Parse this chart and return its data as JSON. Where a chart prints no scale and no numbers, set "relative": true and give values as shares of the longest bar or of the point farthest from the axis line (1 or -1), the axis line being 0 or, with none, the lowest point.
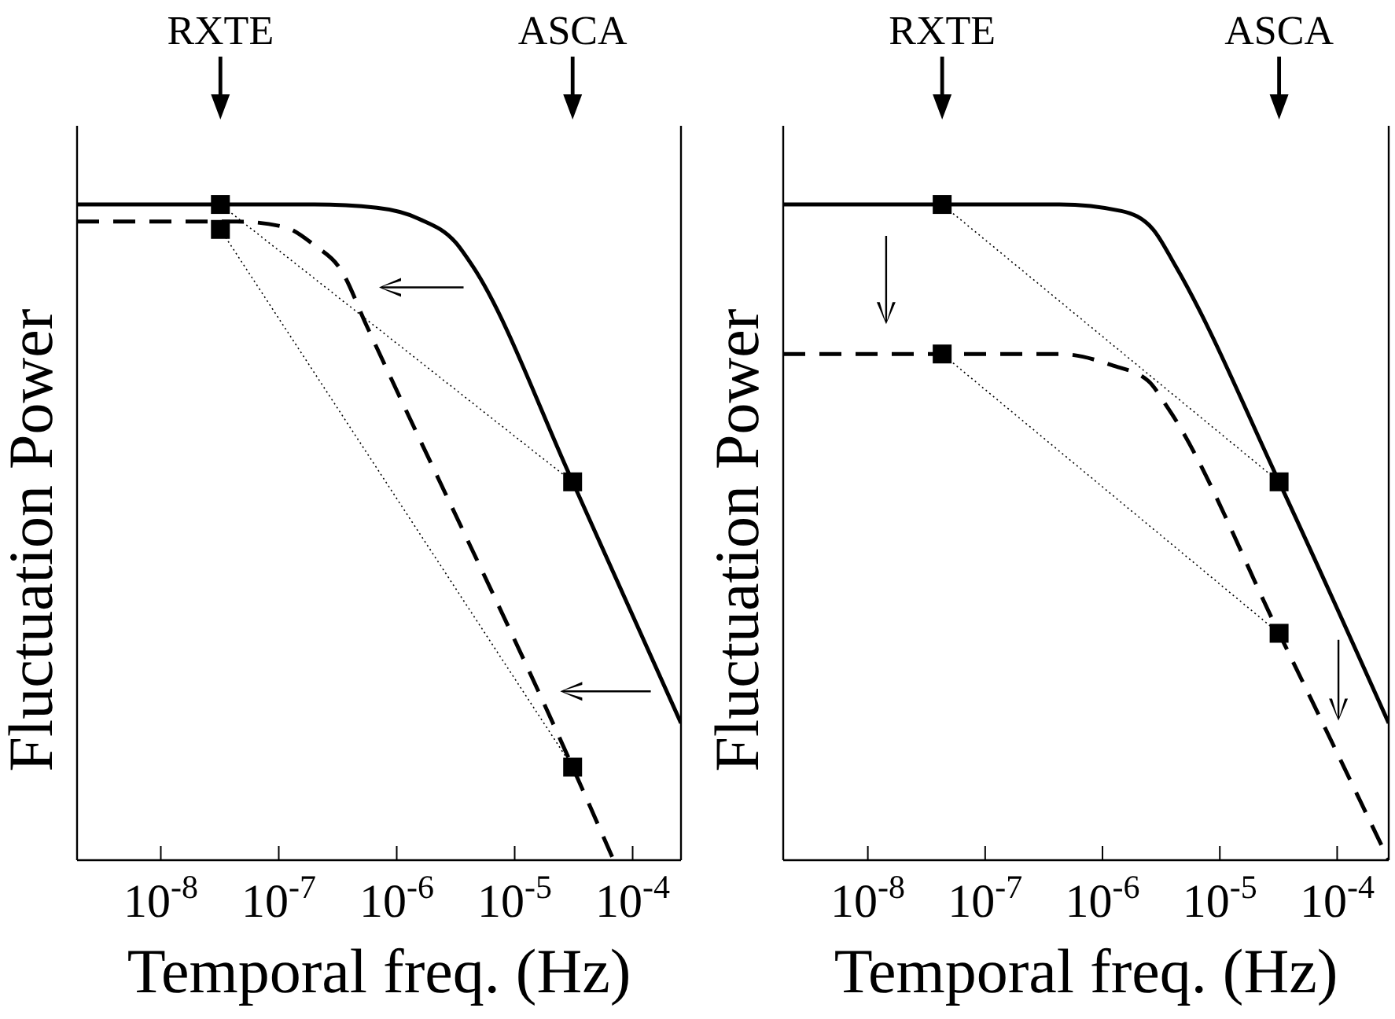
{
  "chart_data": [
    {
      "type": "line",
      "relative": true,
      "xlabel": "Temporal freq. (Hz)",
      "ylabel": "Fluctuation Power",
      "log": "x",
      "xlim": [
        1.95e-09,
        0.000257
      ],
      "xticks": [
        {
          "value": 1e-08,
          "label": "10$^{-8}$"
        },
        {
          "value": 1e-07,
          "label": "10$^{-7}$"
        },
        {
          "value": 1e-06,
          "label": "10$^{-6}$"
        },
        {
          "value": 1e-05,
          "label": "10$^{-5}$"
        },
        {
          "value": 0.0001,
          "label": "10$^{-4}$"
        }
      ],
      "annotations": [
        "RXTE",
        "ASCA"
      ],
      "series": [
        {
          "type": "line",
          "color": "#000000",
          "line_style": "solid",
          "marker": "none",
          "x": [
            1.95e-09,
            2e-07,
            6.8e-07,
            1.55e-06,
            3.16e-06,
            4.4e-06,
            3.1e-05,
            0.000257
          ],
          "values": [
            1.0,
            1.0,
            0.995,
            0.978,
            0.942,
            0.906,
            0.577,
            0.209
          ]
        },
        {
          "type": "line",
          "color": "#000000",
          "line_style": "dashed",
          "marker": "none",
          "x": [
            1.95e-09,
            4.4e-08,
            1.1e-07,
            2e-07,
            3.4e-07,
            5.5e-07,
            3.1e-05,
            6.9e-05
          ],
          "values": [
            0.974,
            0.974,
            0.966,
            0.938,
            0.899,
            0.817,
            0.142,
            0
          ]
        },
        {
          "type": "line",
          "color": "#000000",
          "line_style": "dotted",
          "marker": "square",
          "x": [
            3.2e-08,
            3.1e-05
          ],
          "values": [
            1.0,
            0.577
          ]
        },
        {
          "type": "line",
          "color": "#000000",
          "line_style": "dotted",
          "marker": "square",
          "x": [
            3.2e-08,
            3.1e-05
          ],
          "values": [
            0.962,
            0.142
          ]
        }
      ]
    },
    {
      "type": "line",
      "relative": true,
      "xlabel": "Temporal freq. (Hz)",
      "ylabel": "Fluctuation Power",
      "log": "x",
      "xlim": [
        1.9e-09,
        0.000275
      ],
      "xticks": [
        {
          "value": 1e-08,
          "label": "10$^{-8}$"
        },
        {
          "value": 1e-07,
          "label": "10$^{-7}$"
        },
        {
          "value": 1e-06,
          "label": "10$^{-6}$"
        },
        {
          "value": 1e-05,
          "label": "10$^{-5}$"
        },
        {
          "value": 0.0001,
          "label": "10$^{-4}$"
        }
      ],
      "annotations": [
        "RXTE",
        "ASCA"
      ],
      "series": [
        {
          "type": "line",
          "color": "#000000",
          "line_style": "solid",
          "marker": "none",
          "x": [
            1.9e-09,
            4.3e-07,
            1.45e-06,
            2.7e-06,
            4.2e-06,
            3.2e-05,
            0.000275
          ],
          "values": [
            1.0,
            1.0,
            0.99,
            0.962,
            0.906,
            0.577,
            0.209
          ]
        },
        {
          "type": "line",
          "color": "#000000",
          "line_style": "dashed",
          "marker": "none",
          "x": [
            1.9e-09,
            4.3e-07,
            1.2e-06,
            2.45e-06,
            3.6e-06,
            3.2e-05,
            0.000275
          ],
          "values": [
            0.772,
            0.772,
            0.755,
            0.731,
            0.69,
            0.346,
            0
          ]
        },
        {
          "type": "line",
          "color": "#000000",
          "line_style": "dotted",
          "marker": "square",
          "x": [
            4.3e-08,
            3.2e-05
          ],
          "values": [
            1.0,
            0.577
          ]
        },
        {
          "type": "line",
          "color": "#000000",
          "line_style": "dotted",
          "marker": "square",
          "x": [
            4.3e-08,
            3.2e-05
          ],
          "values": [
            0.772,
            0.346
          ]
        }
      ]
    }
  ]
}
